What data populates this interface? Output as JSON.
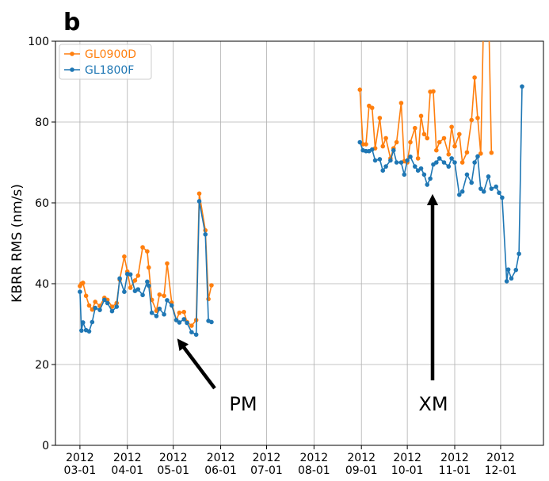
{
  "chart_data": {
    "type": "line",
    "panel_label": "b",
    "ylabel": "KBRR RMS (nm/s)",
    "x": [
      "2012-03-01",
      "2012-03-02",
      "2012-03-03",
      "2012-03-05",
      "2012-03-07",
      "2012-03-09",
      "2012-03-11",
      "2012-03-14",
      "2012-03-17",
      "2012-03-19",
      "2012-03-22",
      "2012-03-25",
      "2012-03-27",
      "2012-03-30",
      "2012-04-01",
      "2012-04-03",
      "2012-04-06",
      "2012-04-08",
      "2012-04-11",
      "2012-04-14",
      "2012-04-15",
      "2012-04-17",
      "2012-04-20",
      "2012-04-22",
      "2012-04-25",
      "2012-04-27",
      "2012-04-30",
      "2012-05-03",
      "2012-05-05",
      "2012-05-08",
      "2012-05-10",
      "2012-05-13",
      "2012-05-16",
      "2012-05-18",
      "2012-05-22",
      "2012-05-24",
      "2012-05-26",
      "2012-07-15",
      "2012-08-31",
      "2012-09-02",
      "2012-09-04",
      "2012-09-06",
      "2012-09-08",
      "2012-09-10",
      "2012-09-13",
      "2012-09-15",
      "2012-09-17",
      "2012-09-20",
      "2012-09-22",
      "2012-09-24",
      "2012-09-27",
      "2012-09-29",
      "2012-10-01",
      "2012-10-03",
      "2012-10-06",
      "2012-10-08",
      "2012-10-10",
      "2012-10-12",
      "2012-10-14",
      "2012-10-16",
      "2012-10-18",
      "2012-10-20",
      "2012-10-22",
      "2012-10-25",
      "2012-10-28",
      "2012-10-30",
      "2012-11-01",
      "2012-11-04",
      "2012-11-06",
      "2012-11-09",
      "2012-11-12",
      "2012-11-14",
      "2012-11-16",
      "2012-11-18",
      "2012-11-20",
      "2012-11-23",
      "2012-11-25",
      "2012-11-28",
      "2012-11-30",
      "2012-12-02",
      "2012-12-05",
      "2012-12-06",
      "2012-12-08",
      "2012-12-11",
      "2012-12-13",
      "2012-12-15"
    ],
    "series": [
      {
        "name": "GL0900D",
        "color": "#ff7f0e",
        "values": [
          39.4,
          40,
          40.2,
          37,
          34.6,
          33.6,
          35.5,
          34.5,
          36.5,
          36,
          34.3,
          35.2,
          41,
          46.7,
          43,
          39,
          40.8,
          42,
          49,
          48,
          44,
          36,
          33.3,
          37.3,
          37,
          45,
          35.3,
          31,
          32.8,
          33,
          30.5,
          29.6,
          31,
          62.3,
          53.2,
          36.2,
          39.6,
          null,
          88,
          74.5,
          74.5,
          84,
          83.5,
          73.5,
          81,
          74,
          76,
          71,
          73.5,
          75,
          84.7,
          70.3,
          70,
          75,
          78.5,
          71,
          81.5,
          77,
          76,
          87.5,
          87.6,
          73,
          75,
          76,
          72,
          78.8,
          74,
          77,
          70,
          72.5,
          80.5,
          91,
          81,
          72.2,
          108,
          110,
          72.4,
          null,
          null,
          null,
          null,
          null,
          null,
          null,
          null,
          null
        ]
      },
      {
        "name": "GL1800F",
        "color": "#1f77b4",
        "values": [
          38,
          28.4,
          30.4,
          28.5,
          28.2,
          30.5,
          34,
          33.5,
          36,
          35.2,
          33.2,
          34.3,
          41.3,
          38,
          42.4,
          42.3,
          38.2,
          38.6,
          37.2,
          40.5,
          39.5,
          32.8,
          32,
          33.8,
          32.4,
          35.9,
          34.6,
          31,
          30.4,
          31.2,
          30.3,
          28,
          27.4,
          60.4,
          52.2,
          30.8,
          30.5,
          null,
          75,
          73,
          72.8,
          72.8,
          73.2,
          70.5,
          70.8,
          68,
          69,
          70.5,
          73,
          70,
          70,
          67,
          70.5,
          71.4,
          69,
          68,
          68.5,
          67,
          64.5,
          66,
          69.5,
          70,
          71,
          70,
          69,
          71,
          70,
          62,
          62.8,
          67,
          65,
          70,
          71.5,
          63.5,
          62.8,
          66.5,
          63.5,
          64,
          62.5,
          61.3,
          40.6,
          43.5,
          41.3,
          43.4,
          47.4,
          88.8
        ]
      }
    ],
    "xlim": [
      "2012-02-14",
      "2012-12-29"
    ],
    "xticks": [
      {
        "value": "2012-03-01",
        "label": "2012\n03-01"
      },
      {
        "value": "2012-04-01",
        "label": "2012\n04-01"
      },
      {
        "value": "2012-05-01",
        "label": "2012\n05-01"
      },
      {
        "value": "2012-06-01",
        "label": "2012\n06-01"
      },
      {
        "value": "2012-07-01",
        "label": "2012\n07-01"
      },
      {
        "value": "2012-08-01",
        "label": "2012\n08-01"
      },
      {
        "value": "2012-09-01",
        "label": "2012\n09-01"
      },
      {
        "value": "2012-10-01",
        "label": "2012\n10-01"
      },
      {
        "value": "2012-11-01",
        "label": "2012\n11-01"
      },
      {
        "value": "2012-12-01",
        "label": "2012\n12-01"
      }
    ],
    "ylim": [
      0,
      100
    ],
    "yticks": [
      0,
      20,
      40,
      60,
      80,
      100
    ],
    "grid": true,
    "legend": "upper left",
    "annotations": [
      {
        "text": "PM"
      },
      {
        "text": "XM"
      }
    ]
  }
}
